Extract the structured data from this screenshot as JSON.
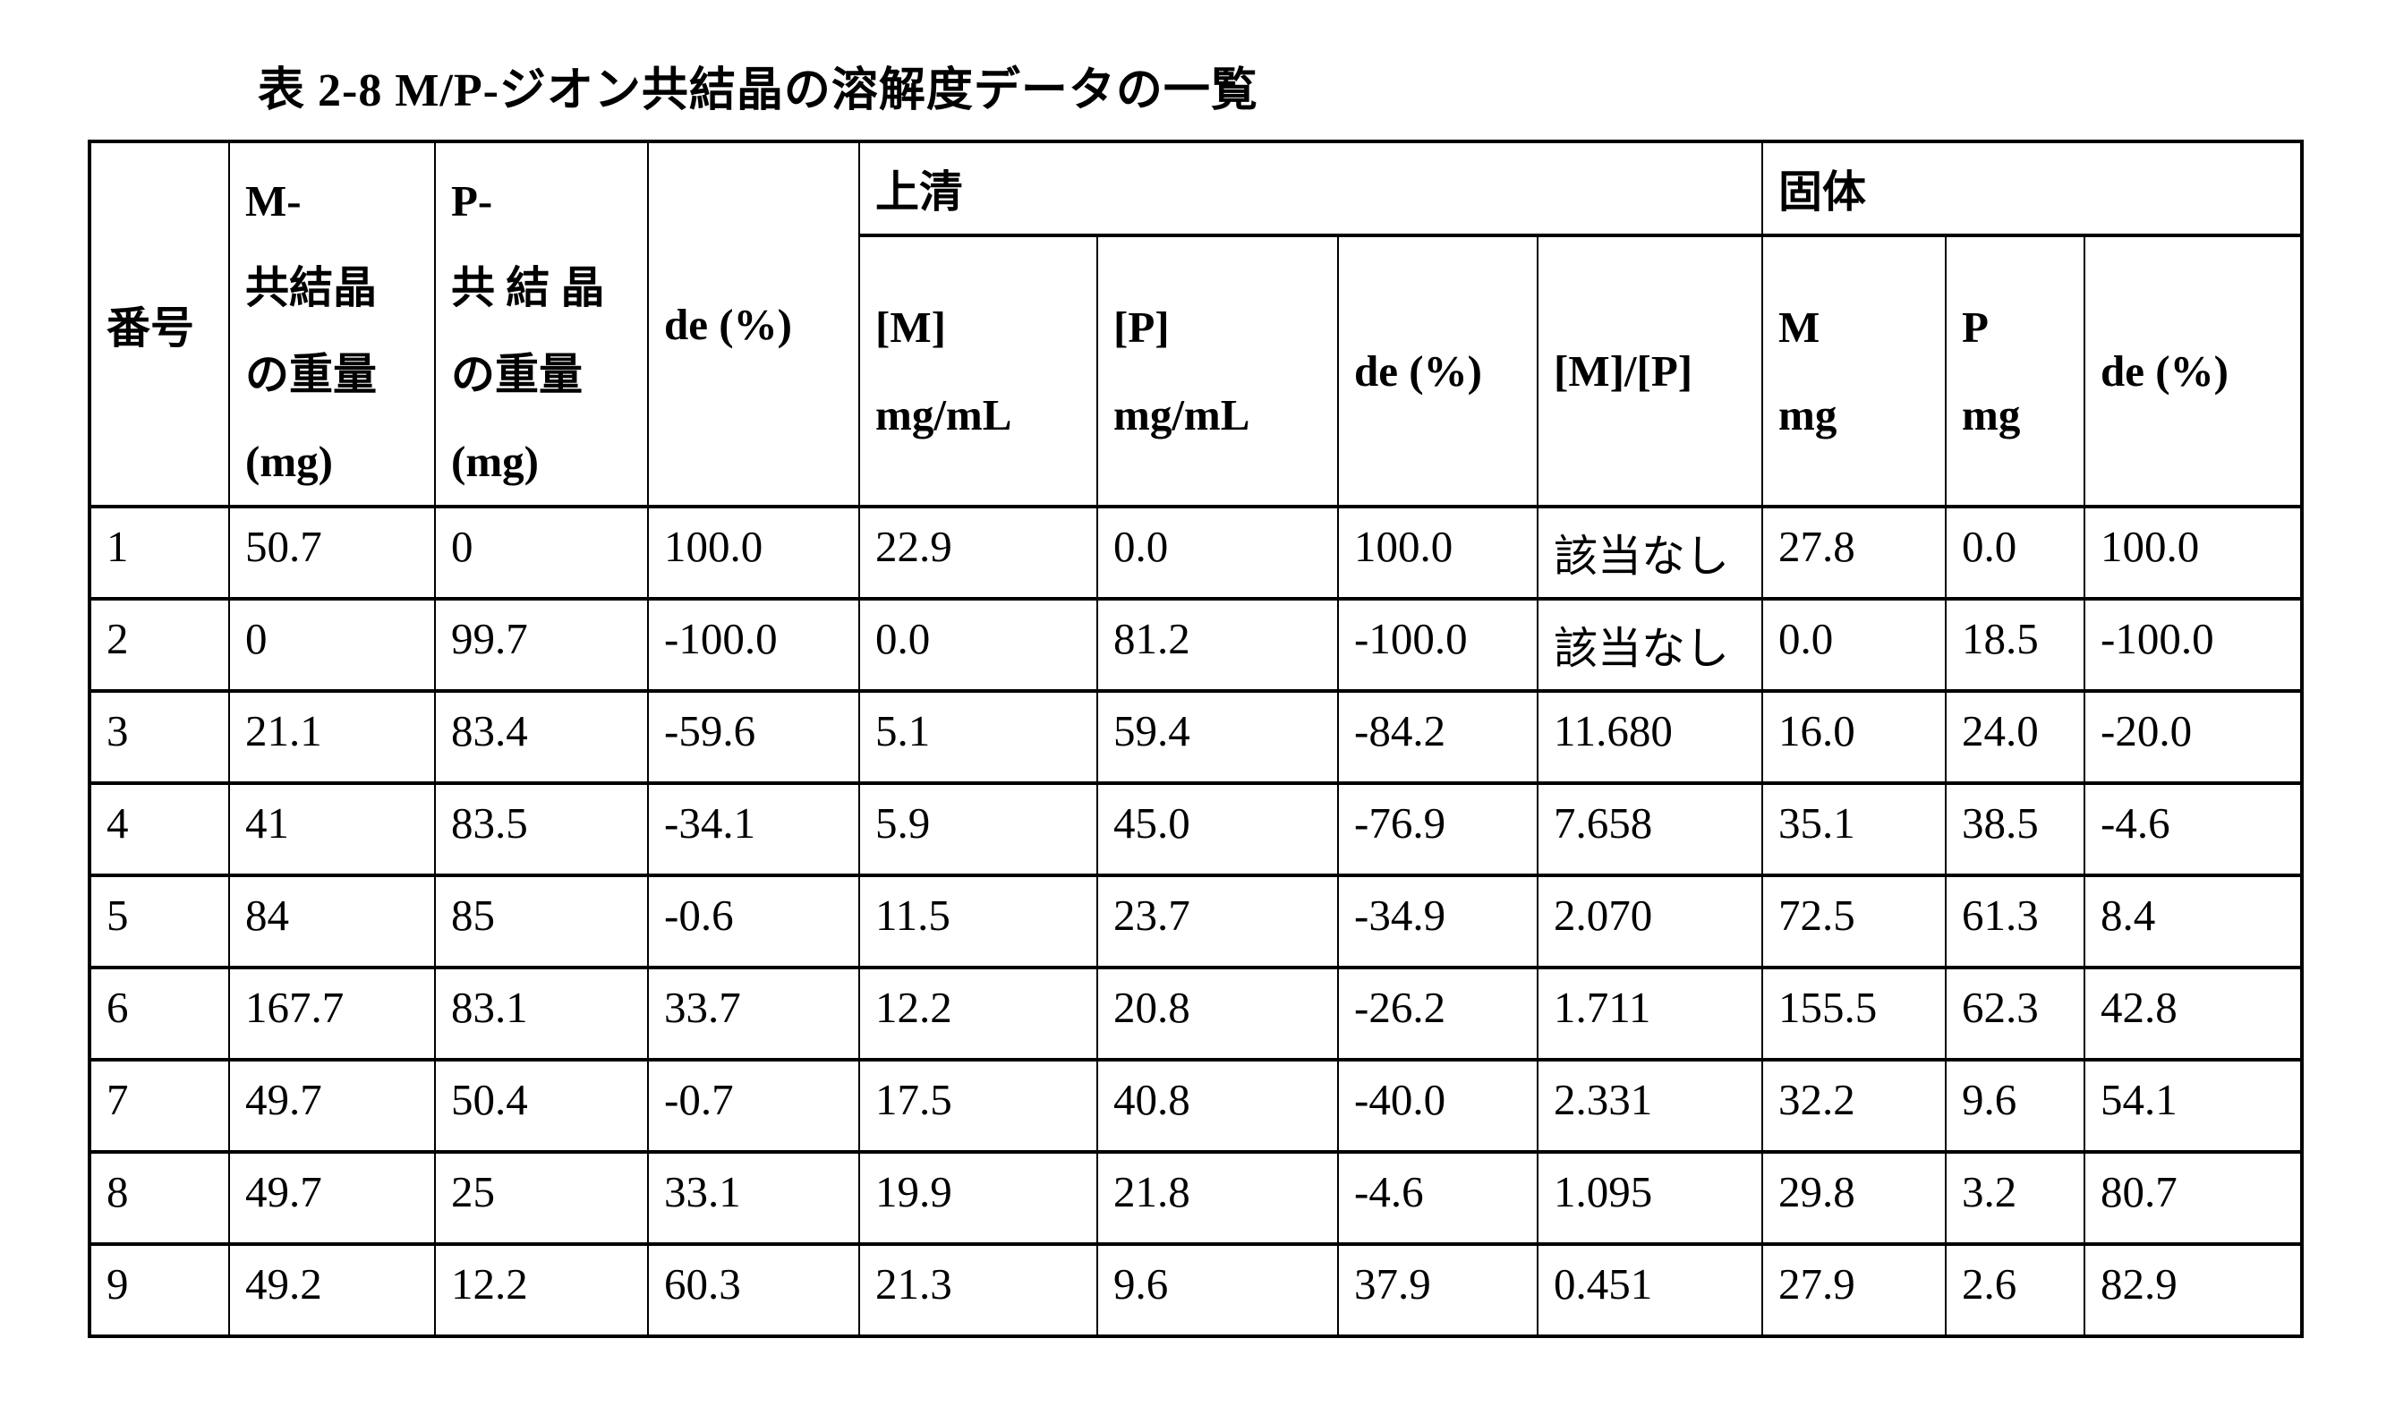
{
  "page": {
    "title": "表 2-8 M/P-ジオン共結晶の溶解度データの一覧"
  },
  "table": {
    "header": {
      "no": "番号",
      "m_weight_lines": [
        "M-",
        "共結晶",
        "の重量",
        "(mg)"
      ],
      "p_weight_lines": [
        "P-",
        "共 結 晶",
        "の重量",
        "(mg)"
      ],
      "de_initial": "de (%)",
      "supernatant_group": "上清",
      "solid_group": "固体",
      "m_conc_lines": [
        "[M]",
        "mg/mL"
      ],
      "p_conc_lines": [
        "[P]",
        "mg/mL"
      ],
      "sup_de": "de (%)",
      "ratio": "[M]/[P]",
      "solid_m_lines": [
        "M",
        "mg"
      ],
      "solid_p_lines": [
        "P",
        "mg"
      ],
      "solid_de": "de (%)"
    },
    "rows": [
      [
        "1",
        "50.7",
        "0",
        "100.0",
        "22.9",
        "0.0",
        "100.0",
        "該当なし",
        "27.8",
        "0.0",
        "100.0"
      ],
      [
        "2",
        "0",
        "99.7",
        "-100.0",
        "0.0",
        "81.2",
        "-100.0",
        "該当なし",
        "0.0",
        "18.5",
        "-100.0"
      ],
      [
        "3",
        "21.1",
        "83.4",
        "-59.6",
        "5.1",
        "59.4",
        "-84.2",
        "11.680",
        "16.0",
        "24.0",
        "-20.0"
      ],
      [
        "4",
        "41",
        "83.5",
        "-34.1",
        "5.9",
        "45.0",
        "-76.9",
        "7.658",
        "35.1",
        "38.5",
        "-4.6"
      ],
      [
        "5",
        "84",
        "85",
        "-0.6",
        "11.5",
        "23.7",
        "-34.9",
        "2.070",
        "72.5",
        "61.3",
        "8.4"
      ],
      [
        "6",
        "167.7",
        "83.1",
        "33.7",
        "12.2",
        "20.8",
        "-26.2",
        "1.711",
        "155.5",
        "62.3",
        "42.8"
      ],
      [
        "7",
        "49.7",
        "50.4",
        "-0.7",
        "17.5",
        "40.8",
        "-40.0",
        "2.331",
        "32.2",
        "9.6",
        "54.1"
      ],
      [
        "8",
        "49.7",
        "25",
        "33.1",
        "19.9",
        "21.8",
        "-4.6",
        "1.095",
        "29.8",
        "3.2",
        "80.7"
      ],
      [
        "9",
        "49.2",
        "12.2",
        "60.3",
        "21.3",
        "9.6",
        "37.9",
        "0.451",
        "27.9",
        "2.6",
        "82.9"
      ]
    ]
  }
}
